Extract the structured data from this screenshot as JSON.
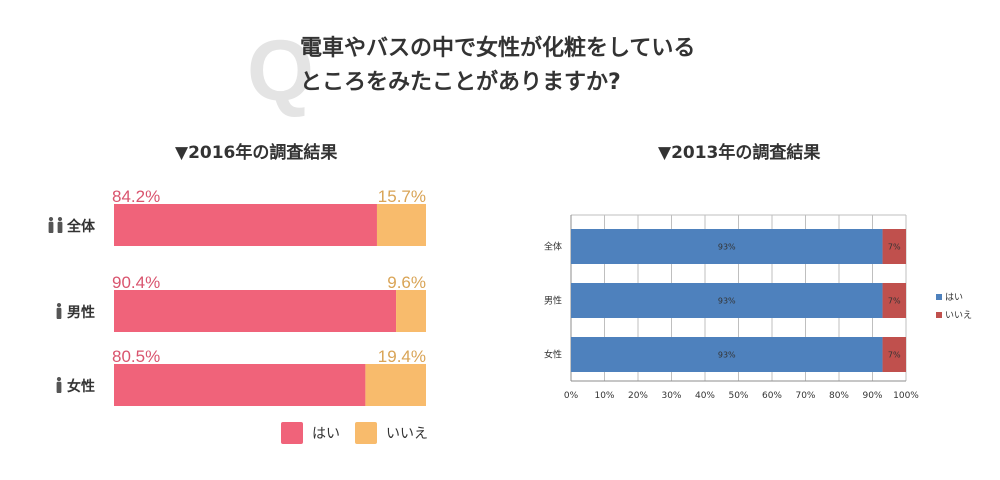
{
  "question": {
    "mark": "Q",
    "line1": "電車やバスの中で女性が化粧をしている",
    "line2": "ところをみたことがありますか?"
  },
  "chart_data": [
    {
      "type": "bar",
      "orientation": "horizontal-stacked",
      "title": "▼2016年の調査結果",
      "categories": [
        "全体",
        "男性",
        "女性"
      ],
      "category_icons": [
        "people-icon",
        "man-icon",
        "woman-icon"
      ],
      "series": [
        {
          "name": "はい",
          "values": [
            84.2,
            90.4,
            80.5
          ],
          "labels": [
            "84.2%",
            "90.4%",
            "80.5%"
          ],
          "color": "#f0637a",
          "label_color": "#d9546e"
        },
        {
          "name": "いいえ",
          "values": [
            15.7,
            9.6,
            19.4
          ],
          "labels": [
            "15.7%",
            "9.6%",
            "19.4%"
          ],
          "color": "#f8bb6c",
          "label_color": "#d9a456"
        }
      ],
      "legend": "bottom",
      "grid": false
    },
    {
      "type": "bar",
      "orientation": "horizontal-stacked",
      "title": "▼2013年の調査結果",
      "categories": [
        "全体",
        "男性",
        "女性"
      ],
      "series": [
        {
          "name": "はい",
          "values": [
            93,
            93,
            93
          ],
          "labels": [
            "93%",
            "93%",
            "93%"
          ],
          "color": "#4e81bd"
        },
        {
          "name": "いいえ",
          "values": [
            7,
            7,
            7
          ],
          "labels": [
            "7%",
            "7%",
            "7%"
          ],
          "color": "#c0504d"
        }
      ],
      "xlim": [
        0,
        100
      ],
      "xticks": [
        "0%",
        "10%",
        "20%",
        "30%",
        "40%",
        "50%",
        "60%",
        "70%",
        "80%",
        "90%",
        "100%"
      ],
      "legend": "right",
      "grid": true
    }
  ]
}
